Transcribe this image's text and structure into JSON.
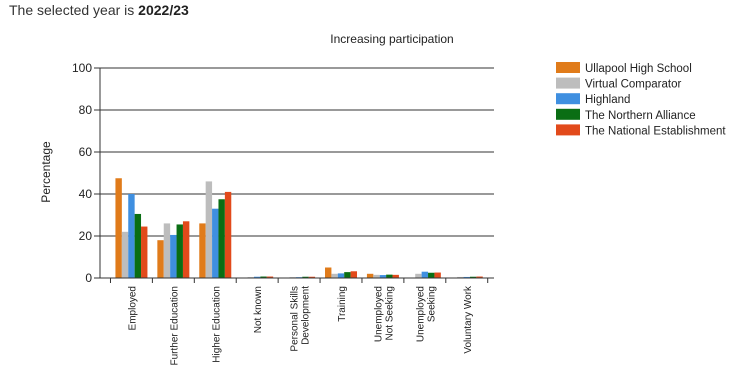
{
  "header": {
    "prefix": "The selected year is ",
    "year": "2022/23"
  },
  "chart_data": {
    "type": "bar",
    "title": "Increasing participation",
    "xlabel": "",
    "ylabel": "Percentage",
    "ylim": [
      0,
      100
    ],
    "yticks": [
      0,
      20,
      40,
      60,
      80,
      100
    ],
    "grid": true,
    "legend_position": "right",
    "categories": [
      [
        "Employed"
      ],
      [
        "Further Education"
      ],
      [
        "Higher Education"
      ],
      [
        "Not known"
      ],
      [
        "Personal Skills",
        "Development"
      ],
      [
        "Training"
      ],
      [
        "Unemployed",
        "Not Seeking"
      ],
      [
        "Unemployed",
        "Seeking"
      ],
      [
        "Voluntary Work"
      ]
    ],
    "series": [
      {
        "name": "Ullapool High School",
        "color": "#E07B1A",
        "values": [
          47.5,
          18,
          26,
          0,
          0,
          5,
          2,
          0,
          0
        ]
      },
      {
        "name": "Virtual Comparator",
        "color": "#BDBDBD",
        "values": [
          22,
          26,
          46,
          0.4,
          0.4,
          2,
          1.5,
          2,
          0.5
        ]
      },
      {
        "name": "Highland",
        "color": "#3F8FE0",
        "values": [
          40,
          20.5,
          33,
          0.6,
          0.4,
          2.2,
          1.4,
          3,
          0.5
        ]
      },
      {
        "name": "The Northern Alliance",
        "color": "#0A6E14",
        "values": [
          30.5,
          25.5,
          37.5,
          0.7,
          0.6,
          2.8,
          1.6,
          2.5,
          0.6
        ]
      },
      {
        "name": "The National Establishment",
        "color": "#E24A1B",
        "values": [
          24.5,
          27,
          41,
          0.7,
          0.6,
          3.2,
          1.5,
          2.6,
          0.7
        ]
      }
    ]
  }
}
